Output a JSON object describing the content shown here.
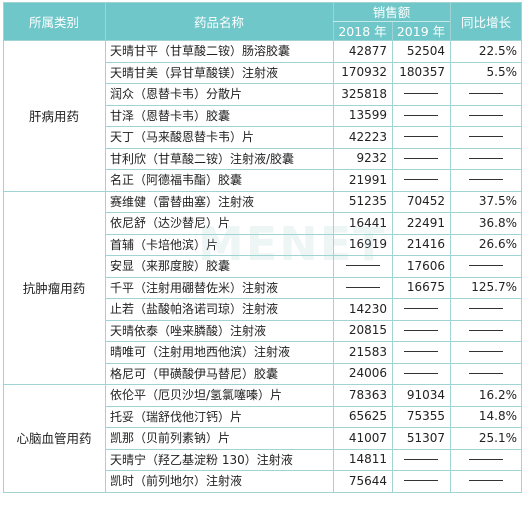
{
  "header": {
    "category": "所属类别",
    "drug_name": "药品名称",
    "sales": "销售额",
    "yoy": "同比增长",
    "year_2018": "2018 年",
    "year_2019": "2019 年"
  },
  "watermark": "MENET",
  "groups": [
    {
      "category": "肝病用药",
      "rows": [
        {
          "name": "天晴甘平（甘草酸二铵）肠溶胶囊",
          "v2018": "42877",
          "v2019": "52504",
          "yoy": "22.5%"
        },
        {
          "name": "天晴甘美（异甘草酸镁）注射液",
          "v2018": "170932",
          "v2019": "180357",
          "yoy": "5.5%"
        },
        {
          "name": "润众（恩替卡韦）分散片",
          "v2018": "325818",
          "v2019": "",
          "yoy": ""
        },
        {
          "name": "甘泽（恩替卡韦）胶囊",
          "v2018": "13599",
          "v2019": "",
          "yoy": ""
        },
        {
          "name": "天丁（马来酸恩替卡韦）片",
          "v2018": "42223",
          "v2019": "",
          "yoy": ""
        },
        {
          "name": "甘利欣（甘草酸二铵）注射液/胶囊",
          "v2018": "9232",
          "v2019": "",
          "yoy": ""
        },
        {
          "name": "名正（阿德福韦酯）胶囊",
          "v2018": "21991",
          "v2019": "",
          "yoy": ""
        }
      ]
    },
    {
      "category": "抗肿瘤用药",
      "rows": [
        {
          "name": "赛维健（雷替曲塞）注射液",
          "v2018": "51235",
          "v2019": "70452",
          "yoy": "37.5%"
        },
        {
          "name": "依尼舒（达沙替尼）片",
          "v2018": "16441",
          "v2019": "22491",
          "yoy": "36.8%"
        },
        {
          "name": "首辅（卡培他滨）片",
          "v2018": "16919",
          "v2019": "21416",
          "yoy": "26.6%"
        },
        {
          "name": "安显（来那度胺）胶囊",
          "v2018": "",
          "v2019": "17606",
          "yoy": ""
        },
        {
          "name": "千平（注射用硼替佐米）注射液",
          "v2018": "",
          "v2019": "16675",
          "yoy": "125.7%"
        },
        {
          "name": "止若（盐酸帕洛诺司琼）注射液",
          "v2018": "14230",
          "v2019": "",
          "yoy": ""
        },
        {
          "name": "天晴依泰（唑来膦酸）注射液",
          "v2018": "20815",
          "v2019": "",
          "yoy": ""
        },
        {
          "name": "晴唯可（注射用地西他滨）注射液",
          "v2018": "21583",
          "v2019": "",
          "yoy": ""
        },
        {
          "name": "格尼可（甲磺酸伊马替尼）胶囊",
          "v2018": "24006",
          "v2019": "",
          "yoy": ""
        }
      ]
    },
    {
      "category": "心脑血管用药",
      "rows": [
        {
          "name": "依伦平（厄贝沙坦/氢氯噻嗪）片",
          "v2018": "78363",
          "v2019": "91034",
          "yoy": "16.2%"
        },
        {
          "name": "托妥（瑞舒伐他汀钙）片",
          "v2018": "65625",
          "v2019": "75355",
          "yoy": "14.8%"
        },
        {
          "name": "凯那（贝前列素钠）片",
          "v2018": "41007",
          "v2019": "51307",
          "yoy": "25.1%"
        },
        {
          "name": "天晴宁（羟乙基淀粉 130）注射液",
          "v2018": "14811",
          "v2019": "",
          "yoy": ""
        },
        {
          "name": "凯时（前列地尔）注射液",
          "v2018": "75644",
          "v2019": "",
          "yoy": ""
        }
      ]
    }
  ]
}
